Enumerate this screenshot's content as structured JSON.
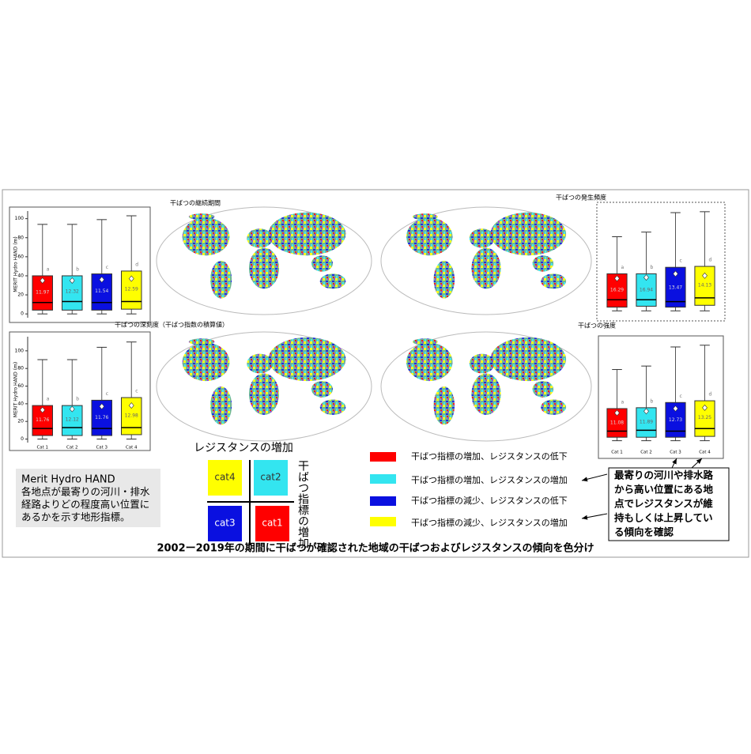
{
  "chart_data": [
    {
      "type": "box",
      "ylabel": "MERIT Hydro HAND (m)",
      "ylim": [
        -4,
        108
      ],
      "yticks": [
        0,
        20,
        40,
        60,
        80,
        100
      ],
      "boxes": [
        {
          "color": "#ff0000",
          "low": 0,
          "q1": 4,
          "median": 12,
          "q3": 40,
          "high": 94,
          "mean": 35,
          "label": 11.97,
          "letter": "a"
        },
        {
          "color": "#33e5f0",
          "low": 0,
          "q1": 4,
          "median": 13,
          "q3": 40,
          "high": 94,
          "mean": 35,
          "label": 12.32,
          "letter": "b"
        },
        {
          "color": "#0a10e0",
          "low": 0,
          "q1": 4,
          "median": 12,
          "q3": 42,
          "high": 99,
          "mean": 36,
          "label": 11.54,
          "letter": "c"
        },
        {
          "color": "#ffff00",
          "low": 0,
          "q1": 5,
          "median": 13,
          "q3": 45,
          "high": 103,
          "mean": 37,
          "label": 12.59,
          "letter": "d"
        }
      ]
    },
    {
      "type": "box",
      "ylabel": "MERIT Hydro HAND (m)",
      "ylim": [
        -4,
        116
      ],
      "yticks": [
        0,
        20,
        40,
        60,
        80,
        100
      ],
      "categories": [
        "Cat 1",
        "Cat 2",
        "Cat 3",
        "Cat 4"
      ],
      "boxes": [
        {
          "color": "#ff0000",
          "low": 0,
          "q1": 4,
          "median": 12,
          "q3": 38,
          "high": 90,
          "mean": 33,
          "label": 11.76,
          "letter": "a"
        },
        {
          "color": "#33e5f0",
          "low": 0,
          "q1": 4,
          "median": 13,
          "q3": 38,
          "high": 90,
          "mean": 34,
          "label": 12.12,
          "letter": "b"
        },
        {
          "color": "#0a10e0",
          "low": 0,
          "q1": 4,
          "median": 12,
          "q3": 44,
          "high": 104,
          "mean": 37,
          "label": 11.76,
          "letter": "c"
        },
        {
          "color": "#ffff00",
          "low": 0,
          "q1": 5,
          "median": 13,
          "q3": 47,
          "high": 110,
          "mean": 38,
          "label": 12.98,
          "letter": "c"
        }
      ]
    },
    {
      "type": "box",
      "ylim": [
        -4,
        112
      ],
      "boxes": [
        {
          "color": "#ff0000",
          "low": 0,
          "q1": 4,
          "median": 12,
          "q3": 40,
          "high": 80,
          "mean": 35,
          "label": 16.29,
          "letter": "a"
        },
        {
          "color": "#33e5f0",
          "low": 0,
          "q1": 5,
          "median": 12,
          "q3": 40,
          "high": 85,
          "mean": 36,
          "label": 16.94,
          "letter": "b"
        },
        {
          "color": "#0a10e0",
          "low": 0,
          "q1": 4,
          "median": 10,
          "q3": 47,
          "high": 106,
          "mean": 40,
          "label": 13.47,
          "letter": "c"
        },
        {
          "color": "#ffff00",
          "low": 0,
          "q1": 6,
          "median": 14,
          "q3": 48,
          "high": 107,
          "mean": 38,
          "label": 14.13,
          "letter": "d"
        }
      ]
    },
    {
      "type": "box",
      "ylim": [
        -4,
        118
      ],
      "categories": [
        "Cat 1",
        "Cat 2",
        "Cat 3",
        "Cat 4"
      ],
      "boxes": [
        {
          "color": "#ff0000",
          "low": 0,
          "q1": 4,
          "median": 11,
          "q3": 37,
          "high": 82,
          "mean": 32,
          "label": 11.08,
          "letter": "a"
        },
        {
          "color": "#33e5f0",
          "low": 0,
          "q1": 4,
          "median": 12,
          "q3": 38,
          "high": 86,
          "mean": 34,
          "label": 11.89,
          "letter": "b"
        },
        {
          "color": "#0a10e0",
          "low": 0,
          "q1": 4,
          "median": 11,
          "q3": 44,
          "high": 108,
          "mean": 37,
          "label": 12.73,
          "letter": "c"
        },
        {
          "color": "#ffff00",
          "low": 0,
          "q1": 5,
          "median": 14,
          "q3": 46,
          "high": 110,
          "mean": 38,
          "label": 13.25,
          "letter": "d"
        }
      ]
    }
  ],
  "maps": [
    {
      "title": "干ばつの継続期間"
    },
    {
      "title": "干ばつの発生頻度"
    },
    {
      "title": "干ばつの深刻度（干ばつ指数の積算値）"
    },
    {
      "title": "干ばつの強度"
    }
  ],
  "quadrant": {
    "x_label": "レジスタンスの増加",
    "y_label": "干ばつ指標の増加",
    "cells": [
      "cat4",
      "cat2",
      "cat3",
      "cat1"
    ]
  },
  "legend": [
    {
      "color": "#ff0000",
      "label": "干ばつ指標の増加、レジスタンスの低下"
    },
    {
      "color": "#33e5f0",
      "label": "干ばつ指標の増加、レジスタンスの増加"
    },
    {
      "color": "#0a10e0",
      "label": "干ばつ指標の減少、レジスタンスの低下"
    },
    {
      "color": "#ffff00",
      "label": "干ばつ指標の減少、レジスタンスの増加"
    }
  ],
  "note": [
    "Merit Hydro HAND",
    "各地点が最寄りの河川・排水",
    "経路よりどの程度高い位置に",
    "あるかを示す地形指標。"
  ],
  "callout": [
    "最寄りの河川や排水路",
    "から高い位置にある地",
    "点でレジスタンスが維",
    "持もしくは上昇してい",
    "る傾向を確認"
  ],
  "caption": "2002ー2019年の期間に干ばつが確認された地域の干ばつおよびレジスタンスの傾向を色分け"
}
